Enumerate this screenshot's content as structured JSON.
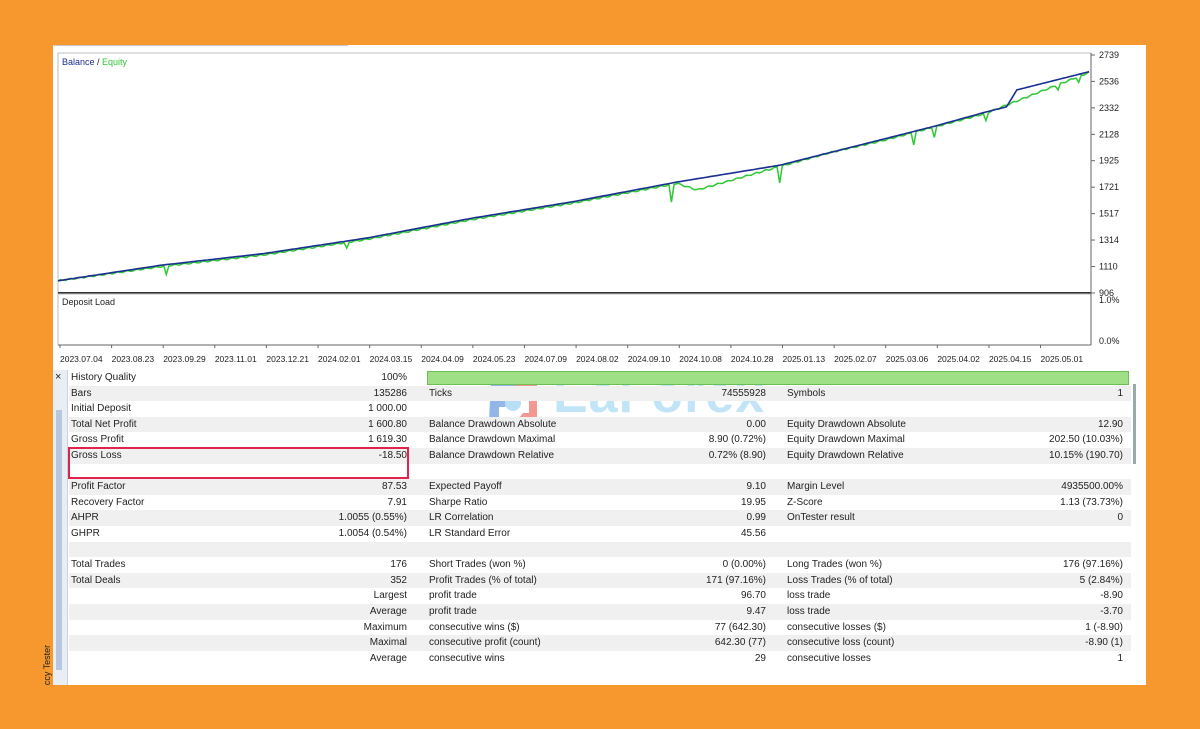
{
  "chart": {
    "legend_balance": "Balance",
    "legend_sep": " / ",
    "legend_equity": "Equity",
    "deposit_load_label": "Deposit Load",
    "y_ticks": [
      "2739",
      "2536",
      "2332",
      "2128",
      "1925",
      "1721",
      "1517",
      "1314",
      "1110",
      "906"
    ],
    "load_ticks": [
      "1.0%",
      "0.0%"
    ],
    "x_ticks": [
      "2023.07.04",
      "2023.08.23",
      "2023.09.29",
      "2023.11.01",
      "2023.12.21",
      "2024.02.01",
      "2024.03.15",
      "2024.04.09",
      "2024.05.23",
      "2024.07.09",
      "2024.08.02",
      "2024.09.10",
      "2024.10.08",
      "2024.10.28",
      "2025.01.13",
      "2025.02.07",
      "2025.03.06",
      "2025.04.02",
      "2025.04.15",
      "2025.05.01"
    ],
    "colors": {
      "balance": "#1a2f8f",
      "equity": "#2fc832",
      "axis": "#555555"
    }
  },
  "chart_data": {
    "type": "line",
    "title": "",
    "xlabel": "",
    "ylabel": "",
    "ylim": [
      906,
      2739
    ],
    "series": [
      {
        "name": "Balance",
        "points": [
          [
            0,
            1000
          ],
          [
            0.05,
            1060
          ],
          [
            0.1,
            1120
          ],
          [
            0.2,
            1210
          ],
          [
            0.3,
            1330
          ],
          [
            0.4,
            1480
          ],
          [
            0.5,
            1610
          ],
          [
            0.6,
            1760
          ],
          [
            0.7,
            1890
          ],
          [
            0.8,
            2090
          ],
          [
            0.85,
            2190
          ],
          [
            0.9,
            2300
          ],
          [
            0.92,
            2340
          ],
          [
            0.93,
            2470
          ],
          [
            1.0,
            2610
          ]
        ]
      },
      {
        "name": "Equity",
        "points": [
          [
            0,
            1000
          ],
          [
            0.1,
            1110
          ],
          [
            0.2,
            1200
          ],
          [
            0.3,
            1320
          ],
          [
            0.4,
            1470
          ],
          [
            0.5,
            1600
          ],
          [
            0.6,
            1750
          ],
          [
            0.62,
            1700
          ],
          [
            0.7,
            1880
          ],
          [
            0.75,
            1990
          ],
          [
            0.8,
            2080
          ],
          [
            0.9,
            2290
          ],
          [
            1.0,
            2605
          ]
        ]
      }
    ]
  },
  "watermark": {
    "text": "EaForex"
  },
  "side": {
    "close": "×",
    "label": "ccy Tester"
  },
  "rows": [
    {
      "l1": "History Quality",
      "v1": "100%",
      "l2": "",
      "v2": "",
      "l3": "",
      "v3": "",
      "hq": true
    },
    {
      "l1": "Bars",
      "v1": "135286",
      "l2": "Ticks",
      "v2": "74555928",
      "l3": "Symbols",
      "v3": "1"
    },
    {
      "l1": "Initial Deposit",
      "v1": "1 000.00",
      "l2": "",
      "v2": "",
      "l3": "",
      "v3": ""
    },
    {
      "l1": "Total Net Profit",
      "v1": "1 600.80",
      "l2": "Balance Drawdown Absolute",
      "v2": "0.00",
      "l3": "Equity Drawdown Absolute",
      "v3": "12.90"
    },
    {
      "l1": "Gross Profit",
      "v1": "1 619.30",
      "l2": "Balance Drawdown Maximal",
      "v2": "8.90 (0.72%)",
      "l3": "Equity Drawdown Maximal",
      "v3": "202.50 (10.03%)"
    },
    {
      "l1": "Gross Loss",
      "v1": "-18.50",
      "l2": "Balance Drawdown Relative",
      "v2": "0.72% (8.90)",
      "l3": "Equity Drawdown Relative",
      "v3": "10.15% (190.70)"
    },
    {
      "l1": "",
      "v1": "",
      "l2": "",
      "v2": "",
      "l3": "",
      "v3": ""
    },
    {
      "l1": "Profit Factor",
      "v1": "87.53",
      "l2": "Expected Payoff",
      "v2": "9.10",
      "l3": "Margin Level",
      "v3": "4935500.00%"
    },
    {
      "l1": "Recovery Factor",
      "v1": "7.91",
      "l2": "Sharpe Ratio",
      "v2": "19.95",
      "l3": "Z-Score",
      "v3": "1.13 (73.73%)"
    },
    {
      "l1": "AHPR",
      "v1": "1.0055 (0.55%)",
      "l2": "LR Correlation",
      "v2": "0.99",
      "l3": "OnTester result",
      "v3": "0"
    },
    {
      "l1": "GHPR",
      "v1": "1.0054 (0.54%)",
      "l2": "LR Standard Error",
      "v2": "45.56",
      "l3": "",
      "v3": ""
    },
    {
      "l1": "",
      "v1": "",
      "l2": "",
      "v2": "",
      "l3": "",
      "v3": ""
    },
    {
      "l1": "Total Trades",
      "v1": "176",
      "l2": "Short Trades (won %)",
      "v2": "0 (0.00%)",
      "l3": "Long Trades (won %)",
      "v3": "176 (97.16%)"
    },
    {
      "l1": "Total Deals",
      "v1": "352",
      "l2": "Profit Trades (% of total)",
      "v2": "171 (97.16%)",
      "l3": "Loss Trades (% of total)",
      "v3": "5 (2.84%)"
    },
    {
      "l1": "",
      "v1": "Largest",
      "l2": "profit trade",
      "v2": "96.70",
      "l3": "loss trade",
      "v3": "-8.90"
    },
    {
      "l1": "",
      "v1": "Average",
      "l2": "profit trade",
      "v2": "9.47",
      "l3": "loss trade",
      "v3": "-3.70"
    },
    {
      "l1": "",
      "v1": "Maximum",
      "l2": "consecutive wins ($)",
      "v2": "77 (642.30)",
      "l3": "consecutive losses ($)",
      "v3": "1 (-8.90)"
    },
    {
      "l1": "",
      "v1": "Maximal",
      "l2": "consecutive profit (count)",
      "v2": "642.30 (77)",
      "l3": "consecutive loss (count)",
      "v3": "-8.90 (1)"
    },
    {
      "l1": "",
      "v1": "Average",
      "l2": "consecutive wins",
      "v2": "29",
      "l3": "consecutive losses",
      "v3": "1"
    }
  ]
}
